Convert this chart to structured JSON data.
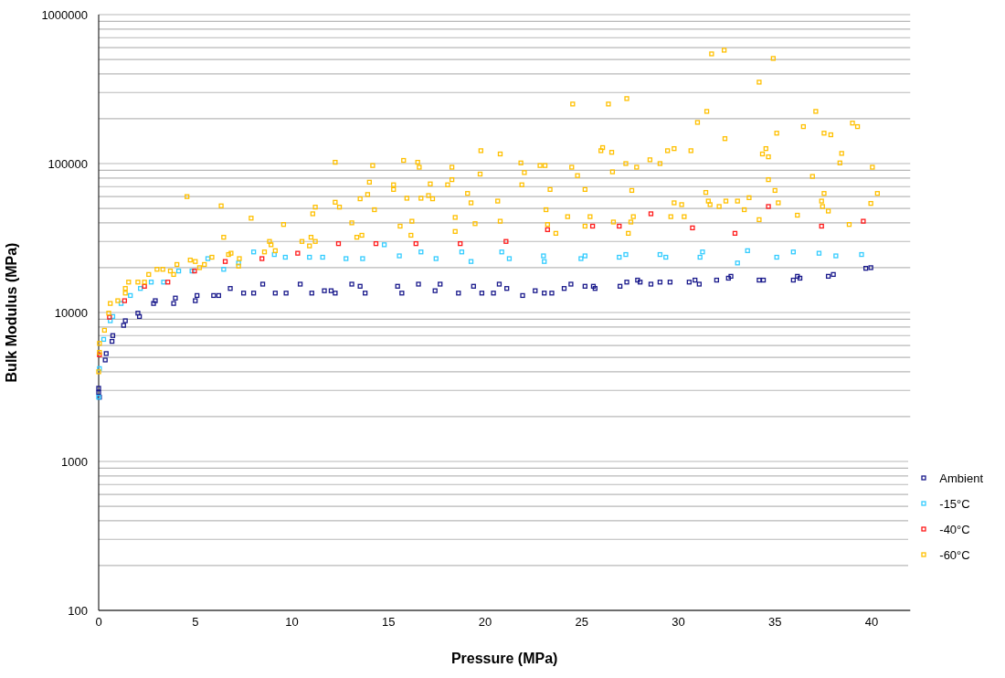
{
  "chart_data": {
    "type": "scatter",
    "xlabel": "Pressure (MPa)",
    "ylabel": "Bulk Modulus (MPa)",
    "xlim": [
      0,
      42
    ],
    "xticks": [
      0,
      5,
      10,
      15,
      20,
      25,
      30,
      35,
      40
    ],
    "ylim": [
      100,
      1000000
    ],
    "log": "y",
    "yticks": [
      100,
      {
        "value": 200,
        "label": null
      },
      {
        "value": 300,
        "label": null
      },
      {
        "value": 400,
        "label": null
      },
      {
        "value": 500,
        "label": null
      },
      {
        "value": 600,
        "label": null
      },
      {
        "value": 700,
        "label": null
      },
      {
        "value": 800,
        "label": null
      },
      {
        "value": 900,
        "label": null
      },
      1000,
      {
        "value": 2000,
        "label": null
      },
      {
        "value": 3000,
        "label": null
      },
      {
        "value": 4000,
        "label": null
      },
      {
        "value": 5000,
        "label": null
      },
      {
        "value": 6000,
        "label": null
      },
      {
        "value": 7000,
        "label": null
      },
      {
        "value": 8000,
        "label": null
      },
      {
        "value": 9000,
        "label": null
      },
      10000,
      {
        "value": 20000,
        "label": null
      },
      {
        "value": 30000,
        "label": null
      },
      {
        "value": 40000,
        "label": null
      },
      {
        "value": 50000,
        "label": null
      },
      {
        "value": 60000,
        "label": null
      },
      {
        "value": 70000,
        "label": null
      },
      {
        "value": 80000,
        "label": null
      },
      {
        "value": 90000,
        "label": null
      },
      100000,
      {
        "value": 200000,
        "label": null
      },
      {
        "value": 300000,
        "label": null
      },
      {
        "value": 400000,
        "label": null
      },
      {
        "value": 500000,
        "label": null
      },
      {
        "value": 600000,
        "label": null
      },
      {
        "value": 700000,
        "label": null
      },
      {
        "value": 800000,
        "label": null
      },
      {
        "value": 900000,
        "label": null
      },
      1000000
    ],
    "grid": "y",
    "legend": "bottom right",
    "marker": "square",
    "series": [
      {
        "name": "Ambient",
        "color": "#1a1a8c",
        "x": [
          0,
          0,
          0.04,
          0.34,
          0.39,
          0.69,
          0.73,
          1.29,
          1.38,
          2.03,
          2.11,
          2.84,
          2.93,
          3.88,
          3.97,
          5.0,
          5.09,
          5.95,
          6.21,
          6.81,
          7.5,
          8.02,
          8.49,
          9.14,
          9.7,
          10.43,
          11.03,
          11.68,
          12.03,
          12.24,
          13.1,
          13.53,
          13.79,
          15.47,
          15.69,
          16.55,
          17.41,
          17.67,
          18.62,
          19.4,
          19.83,
          20.43,
          20.73,
          21.12,
          21.94,
          22.59,
          23.06,
          23.45,
          24.09,
          24.44,
          25.17,
          25.6,
          25.69,
          26.98,
          27.33,
          27.89,
          28.02,
          28.58,
          29.05,
          29.57,
          30.56,
          30.86,
          31.08,
          31.98,
          32.59,
          32.72,
          34.18,
          34.4,
          35.95,
          36.16,
          36.29,
          37.76,
          38.02,
          39.7,
          39.96
        ],
        "values": [
          2900,
          3100,
          2700,
          4800,
          5300,
          6400,
          7000,
          8200,
          8800,
          9900,
          9400,
          11500,
          12000,
          11500,
          12500,
          12000,
          13000,
          13000,
          13000,
          14500,
          13500,
          13500,
          15500,
          13500,
          13500,
          15500,
          13500,
          14000,
          14000,
          13500,
          15500,
          15000,
          13500,
          15000,
          13500,
          15500,
          14000,
          15500,
          13500,
          15000,
          13500,
          13500,
          15500,
          14500,
          13000,
          14000,
          13500,
          13500,
          14500,
          15500,
          15000,
          15000,
          14500,
          15000,
          16000,
          16500,
          16000,
          15500,
          16000,
          16000,
          16000,
          16500,
          15500,
          16500,
          17000,
          17500,
          16500,
          16500,
          16500,
          17500,
          17000,
          17500,
          18000,
          19800,
          20000
        ]
      },
      {
        "name": "-15°C",
        "color": "#33ccff",
        "x": [
          0,
          0.04,
          0.26,
          0.6,
          0.73,
          1.16,
          1.64,
          2.16,
          2.72,
          3.36,
          4.14,
          4.83,
          5.65,
          6.47,
          7.24,
          8.02,
          9.09,
          9.66,
          10.91,
          11.59,
          12.8,
          13.66,
          14.78,
          15.56,
          16.68,
          17.46,
          18.79,
          19.27,
          20.86,
          21.25,
          23.02,
          23.06,
          24.96,
          25.17,
          26.94,
          27.28,
          29.05,
          29.35,
          31.12,
          31.25,
          33.06,
          33.58,
          35.09,
          35.95,
          37.28,
          38.15,
          39.48
        ],
        "values": [
          2700,
          4200,
          6600,
          8800,
          9400,
          11500,
          13000,
          14500,
          16000,
          16000,
          19000,
          19000,
          23000,
          19500,
          21500,
          25500,
          24500,
          23500,
          23500,
          23500,
          23000,
          23000,
          28500,
          24000,
          25500,
          23000,
          25500,
          22000,
          25500,
          23000,
          24000,
          22000,
          23000,
          24000,
          23500,
          24500,
          24500,
          23500,
          23500,
          25500,
          21500,
          26000,
          23500,
          25500,
          25000,
          24000,
          24500
        ]
      },
      {
        "name": "-40°C",
        "color": "#ff1a1a",
        "x": [
          0.04,
          0.56,
          1.34,
          2.37,
          3.58,
          4.96,
          6.55,
          8.45,
          10.3,
          12.41,
          14.35,
          16.42,
          18.71,
          21.08,
          23.23,
          25.56,
          26.94,
          28.58,
          30.73,
          32.93,
          34.66,
          37.41,
          39.57
        ],
        "values": [
          5200,
          9300,
          12000,
          15000,
          16000,
          19000,
          22000,
          23000,
          25000,
          29000,
          29000,
          29000,
          29000,
          30000,
          36000,
          38000,
          38000,
          46000,
          37000,
          34000,
          51500,
          38000,
          41000
        ]
      },
      {
        "name": "-60°C",
        "color": "#ffc000",
        "x": [
          0,
          0.04,
          0.04,
          0.3,
          0.52,
          0.6,
          0.99,
          1.38,
          1.38,
          1.55,
          2.03,
          2.37,
          2.59,
          3.02,
          3.32,
          3.71,
          3.88,
          4.05,
          4.57,
          4.74,
          5.0,
          5.22,
          5.47,
          5.86,
          6.34,
          6.47,
          6.72,
          6.85,
          7.24,
          7.28,
          7.89,
          8.58,
          8.84,
          8.92,
          9.14,
          9.57,
          10.52,
          10.91,
          10.99,
          11.08,
          11.21,
          11.21,
          12.24,
          12.24,
          12.46,
          13.1,
          13.36,
          13.62,
          13.53,
          13.92,
          14.01,
          14.18,
          14.27,
          15.26,
          15.26,
          15.6,
          15.78,
          15.95,
          16.16,
          16.21,
          16.51,
          16.59,
          16.68,
          17.16,
          17.07,
          17.28,
          18.06,
          18.28,
          18.28,
          18.45,
          18.45,
          19.09,
          19.27,
          19.48,
          19.74,
          19.78,
          20.65,
          20.78,
          20.78,
          21.85,
          22.03,
          21.9,
          22.84,
          23.1,
          23.36,
          23.15,
          23.23,
          23.66,
          24.27,
          24.48,
          24.78,
          24.53,
          25.17,
          25.17,
          25.43,
          26.38,
          26.08,
          25.99,
          26.55,
          26.59,
          26.64,
          27.33,
          27.28,
          27.41,
          27.54,
          27.67,
          27.84,
          27.59,
          28.53,
          29.05,
          29.44,
          29.61,
          29.78,
          29.78,
          30.17,
          30.3,
          30.65,
          30.99,
          31.47,
          31.42,
          31.55,
          31.64,
          31.72,
          32.37,
          32.11,
          32.41,
          32.46,
          33.06,
          33.41,
          33.66,
          34.18,
          34.18,
          34.35,
          34.53,
          34.66,
          34.66,
          34.91,
          35.0,
          35.09,
          35.17,
          36.16,
          36.47,
          36.94,
          37.11,
          37.41,
          37.46,
          37.54,
          37.54,
          37.76,
          37.89,
          38.36,
          38.45,
          38.84,
          39.01,
          39.27,
          39.96,
          40.04,
          40.3
        ],
        "values": [
          4000,
          5400,
          6200,
          7600,
          9900,
          11500,
          12000,
          13500,
          14500,
          16000,
          16000,
          16000,
          18000,
          19500,
          19500,
          19000,
          18000,
          21000,
          60000,
          22500,
          22000,
          20000,
          21000,
          23500,
          52000,
          32000,
          24500,
          25000,
          20500,
          23000,
          43000,
          25500,
          30000,
          28500,
          26000,
          39000,
          30000,
          28000,
          32000,
          46000,
          30000,
          51000,
          102000,
          55000,
          51000,
          40000,
          32000,
          33000,
          58000,
          62000,
          75000,
          97000,
          49000,
          72000,
          67000,
          38000,
          105000,
          58500,
          33000,
          41000,
          102000,
          94500,
          58500,
          73000,
          61000,
          58000,
          72000,
          94500,
          78000,
          43500,
          35000,
          63000,
          54500,
          39500,
          85000,
          122000,
          56000,
          116000,
          41000,
          101000,
          87000,
          72000,
          97000,
          97000,
          67000,
          49000,
          39000,
          34000,
          44000,
          94500,
          83000,
          251000,
          67000,
          38000,
          44000,
          251000,
          128000,
          122000,
          119000,
          88000,
          40500,
          273000,
          100000,
          34000,
          40500,
          44000,
          94500,
          66000,
          106000,
          100000,
          122000,
          44000,
          126000,
          54500,
          53000,
          44000,
          122000,
          189000,
          224000,
          64000,
          56000,
          53000,
          545000,
          577000,
          51500,
          147000,
          56000,
          56000,
          49000,
          59000,
          352000,
          42000,
          116000,
          126000,
          111000,
          78000,
          508000,
          66000,
          160000,
          54500,
          45000,
          177000,
          82000,
          224000,
          56000,
          51500,
          160000,
          63000,
          48000,
          156000,
          101000,
          117000,
          39000,
          187000,
          177000,
          54000,
          94500,
          63000
        ]
      }
    ]
  }
}
